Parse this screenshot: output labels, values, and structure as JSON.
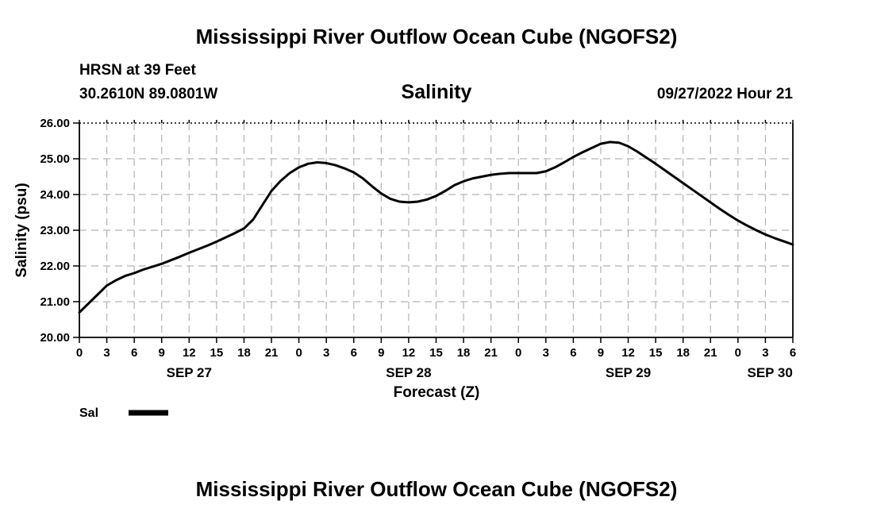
{
  "header": {
    "title": "Mississippi River Outflow Ocean Cube (NGOFS2)",
    "station": "HRSN at 39 Feet",
    "coords": "30.2610N  89.0801W",
    "timestamp": "09/27/2022 Hour 21"
  },
  "footer": {
    "title": "Mississippi River Outflow Ocean Cube (NGOFS2)"
  },
  "legend": [
    {
      "label": "Sal",
      "color": "#000000"
    }
  ],
  "chart_data": {
    "type": "line",
    "title": "Salinity",
    "xlabel": "Forecast (Z)",
    "ylabel": "Salinity (psu)",
    "ylim": [
      20,
      26
    ],
    "xlim": [
      0,
      78
    ],
    "x_unit": "hours from SEP 27 00Z",
    "y_ticks": [
      "20.00",
      "21.00",
      "22.00",
      "23.00",
      "24.00",
      "25.00",
      "26.00"
    ],
    "x_tick_labels": [
      "0",
      "3",
      "6",
      "9",
      "12",
      "15",
      "18",
      "21",
      "0",
      "3",
      "6",
      "9",
      "12",
      "15",
      "18",
      "21",
      "0",
      "3",
      "6",
      "9",
      "12",
      "15",
      "18",
      "21",
      "0",
      "3",
      "6"
    ],
    "date_labels": [
      {
        "label": "SEP 27",
        "hour": 12
      },
      {
        "label": "SEP 28",
        "hour": 36
      },
      {
        "label": "SEP 29",
        "hour": 60
      },
      {
        "label": "SEP 30",
        "hour": 75.5
      }
    ],
    "grid": true,
    "series": [
      {
        "name": "Sal",
        "x": [
          0,
          1,
          2,
          3,
          4,
          5,
          6,
          7,
          8,
          9,
          10,
          11,
          12,
          13,
          14,
          15,
          16,
          17,
          18,
          19,
          20,
          21,
          22,
          23,
          24,
          25,
          26,
          27,
          28,
          29,
          30,
          31,
          32,
          33,
          34,
          35,
          36,
          37,
          38,
          39,
          40,
          41,
          42,
          43,
          44,
          45,
          46,
          47,
          48,
          49,
          50,
          51,
          52,
          53,
          54,
          55,
          56,
          57,
          58,
          59,
          60,
          61,
          62,
          63,
          64,
          65,
          66,
          67,
          68,
          69,
          70,
          71,
          72,
          73,
          74,
          75,
          76,
          77,
          78
        ],
        "values": [
          20.7,
          20.95,
          21.2,
          21.45,
          21.6,
          21.72,
          21.8,
          21.9,
          21.98,
          22.06,
          22.16,
          22.26,
          22.37,
          22.47,
          22.57,
          22.68,
          22.8,
          22.92,
          23.05,
          23.3,
          23.7,
          24.1,
          24.38,
          24.6,
          24.76,
          24.86,
          24.9,
          24.88,
          24.82,
          24.73,
          24.62,
          24.45,
          24.23,
          24.03,
          23.88,
          23.8,
          23.78,
          23.8,
          23.86,
          23.96,
          24.1,
          24.26,
          24.37,
          24.45,
          24.5,
          24.55,
          24.58,
          24.6,
          24.6,
          24.6,
          24.6,
          24.65,
          24.76,
          24.9,
          25.05,
          25.18,
          25.3,
          25.42,
          25.47,
          25.45,
          25.35,
          25.2,
          25.03,
          24.86,
          24.68,
          24.5,
          24.32,
          24.14,
          23.96,
          23.78,
          23.6,
          23.43,
          23.27,
          23.13,
          23.0,
          22.88,
          22.78,
          22.69,
          22.6
        ]
      }
    ]
  }
}
